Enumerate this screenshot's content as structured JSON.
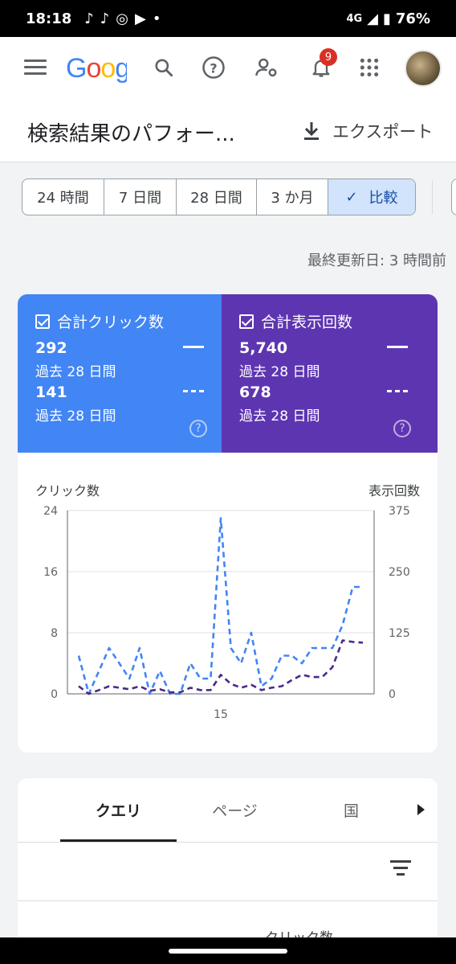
{
  "status_bar": {
    "time": "18:18",
    "network": "4G",
    "battery": "76%"
  },
  "app_bar": {
    "logo_text": "Goog",
    "notification_count": "9"
  },
  "header": {
    "title": "検索結果のパフォー...",
    "export_label": "エクスポート"
  },
  "date_chips": [
    {
      "label": "24 時間"
    },
    {
      "label": "7 日間"
    },
    {
      "label": "28 日間"
    },
    {
      "label": "3 か月"
    },
    {
      "label": "比較",
      "selected": true
    }
  ],
  "last_updated": "最終更新日: 3 時間前",
  "metrics": {
    "clicks": {
      "title": "合計クリック数",
      "current_value": "292",
      "current_period": "過去 28 日間",
      "previous_value": "141",
      "previous_period": "過去 28 日間",
      "color": "#4285f4"
    },
    "impressions": {
      "title": "合計表示回数",
      "current_value": "5,740",
      "current_period": "過去 28 日間",
      "previous_value": "678",
      "previous_period": "過去 28 日間",
      "color": "#5e35b1"
    }
  },
  "chart_data": {
    "type": "line",
    "y_left_label": "クリック数",
    "y_right_label": "表示回数",
    "y_left_ticks": [
      "0",
      "8",
      "16",
      "24"
    ],
    "y_right_ticks": [
      "0",
      "125",
      "250",
      "375"
    ],
    "y_left_range": [
      0,
      24
    ],
    "y_right_range": [
      0,
      375
    ],
    "x_tick_labels": [
      {
        "index": 14,
        "label": "15"
      }
    ],
    "x_count": 29,
    "grid": true,
    "series": [
      {
        "axis": "left",
        "color": "#4285f4",
        "style": "dashed",
        "values": [
          5,
          0,
          3,
          6,
          4,
          2,
          6,
          0,
          3,
          0,
          0,
          4,
          2,
          2,
          23,
          6,
          4,
          8,
          1,
          2,
          5,
          5,
          4,
          6,
          6,
          6,
          9,
          14,
          14
        ]
      },
      {
        "axis": "left",
        "color": "#4a2a8a",
        "style": "dashed",
        "values": [
          1,
          0,
          0.5,
          1,
          0.8,
          0.6,
          1,
          0.4,
          0.6,
          0.2,
          0.2,
          0.8,
          0.5,
          0.5,
          2.5,
          1.3,
          0.8,
          1.2,
          0.5,
          0.8,
          1,
          1.8,
          2.5,
          2.2,
          2.2,
          3.5,
          7,
          6.8,
          6.7
        ]
      }
    ]
  },
  "tabs": [
    {
      "label": "クエリ",
      "active": true
    },
    {
      "label": "ページ"
    },
    {
      "label": "国"
    }
  ],
  "table": {
    "column_clicks": "クリック数"
  }
}
